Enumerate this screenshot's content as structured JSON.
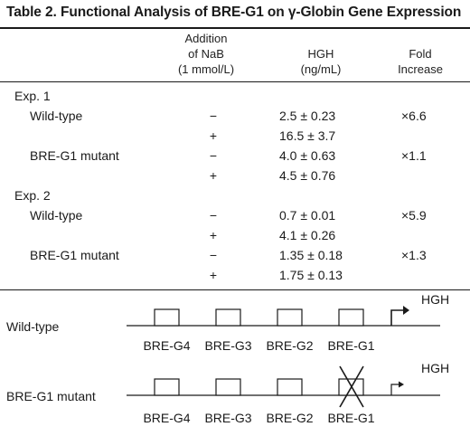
{
  "table": {
    "title": "Table 2.  Functional Analysis of BRE-G1 on γ-Globin Gene Expression",
    "headers": {
      "nab_line1": "Addition",
      "nab_line2": "of NaB",
      "nab_line3": "(1 mmol/L)",
      "hgh_line1": "HGH",
      "hgh_line2": "(ng/mL)",
      "fold_line1": "Fold",
      "fold_line2": "Increase"
    },
    "groups": [
      {
        "label": "Exp. 1",
        "rows": [
          {
            "construct": "Wild-type",
            "nab": "−",
            "hgh": "2.5 ± 0.23",
            "fold": "×6.6"
          },
          {
            "construct": "",
            "nab": "+",
            "hgh": "16.5 ± 3.7",
            "fold": ""
          },
          {
            "construct": "BRE-G1 mutant",
            "nab": "−",
            "hgh": "4.0 ± 0.63",
            "fold": "×1.1"
          },
          {
            "construct": "",
            "nab": "+",
            "hgh": "4.5 ± 0.76",
            "fold": ""
          }
        ]
      },
      {
        "label": "Exp. 2",
        "rows": [
          {
            "construct": "Wild-type",
            "nab": "−",
            "hgh": "0.7 ± 0.01",
            "fold": "×5.9"
          },
          {
            "construct": "",
            "nab": "+",
            "hgh": "4.1 ± 0.26",
            "fold": ""
          },
          {
            "construct": "BRE-G1 mutant",
            "nab": "−",
            "hgh": "1.35 ± 0.18",
            "fold": "×1.3"
          },
          {
            "construct": "",
            "nab": "+",
            "hgh": "1.75 ± 0.13",
            "fold": ""
          }
        ]
      }
    ]
  },
  "diagram": {
    "constructs": [
      {
        "name": "Wild-type",
        "reporter": "HGH",
        "mutated": "none",
        "elements": [
          "BRE-G4",
          "BRE-G3",
          "BRE-G2",
          "BRE-G1"
        ]
      },
      {
        "name": "BRE-G1 mutant",
        "reporter": "HGH",
        "mutated": "BRE-G1",
        "elements": [
          "BRE-G4",
          "BRE-G3",
          "BRE-G2",
          "BRE-G1"
        ]
      }
    ]
  }
}
